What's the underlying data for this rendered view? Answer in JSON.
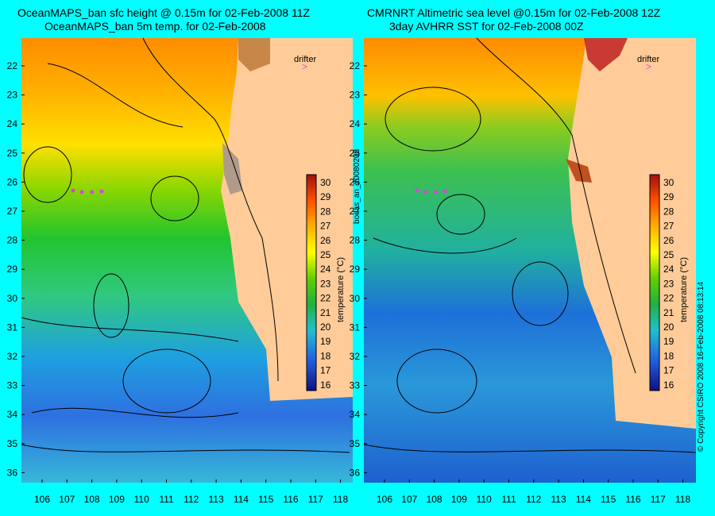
{
  "left_panel": {
    "title_line1": "OceanMAPS_ban sfc height @ 0.15m for 02-Feb-2008 11Z",
    "title_line2": "OceanMAPS_ban 5m temp. for 02-Feb-2008",
    "drifter_label": "drifter",
    "side_text": "bodas_an_20080202"
  },
  "right_panel": {
    "title_line1": "CMRNRT Altimetric sea level  @0.15m  for 02-Feb-2008 12Z",
    "title_line2": "3day AVHRR SST for 02-Feb-2008 00Z",
    "drifter_label": "drifter",
    "side_text": "© Copyright CSIRO 2008   16-Feb-2008 08:13:14"
  },
  "axes": {
    "lat_labels": [
      "22",
      "23",
      "24",
      "25",
      "26",
      "27",
      "28",
      "29",
      "30",
      "31",
      "32",
      "33",
      "34",
      "35",
      "36"
    ],
    "lon_labels": [
      "106",
      "107",
      "108",
      "109",
      "110",
      "111",
      "112",
      "113",
      "114",
      "115",
      "116",
      "117",
      "118"
    ]
  },
  "colorbar": {
    "label": "temperature (°C)",
    "ticks": [
      "30",
      "29",
      "28",
      "27",
      "26",
      "25",
      "24",
      "23",
      "22",
      "21",
      "20",
      "19",
      "18",
      "17",
      "16"
    ]
  },
  "colors": {
    "background": "#00ffff",
    "land": "#ffcc99",
    "drifter": "#e040e0"
  }
}
